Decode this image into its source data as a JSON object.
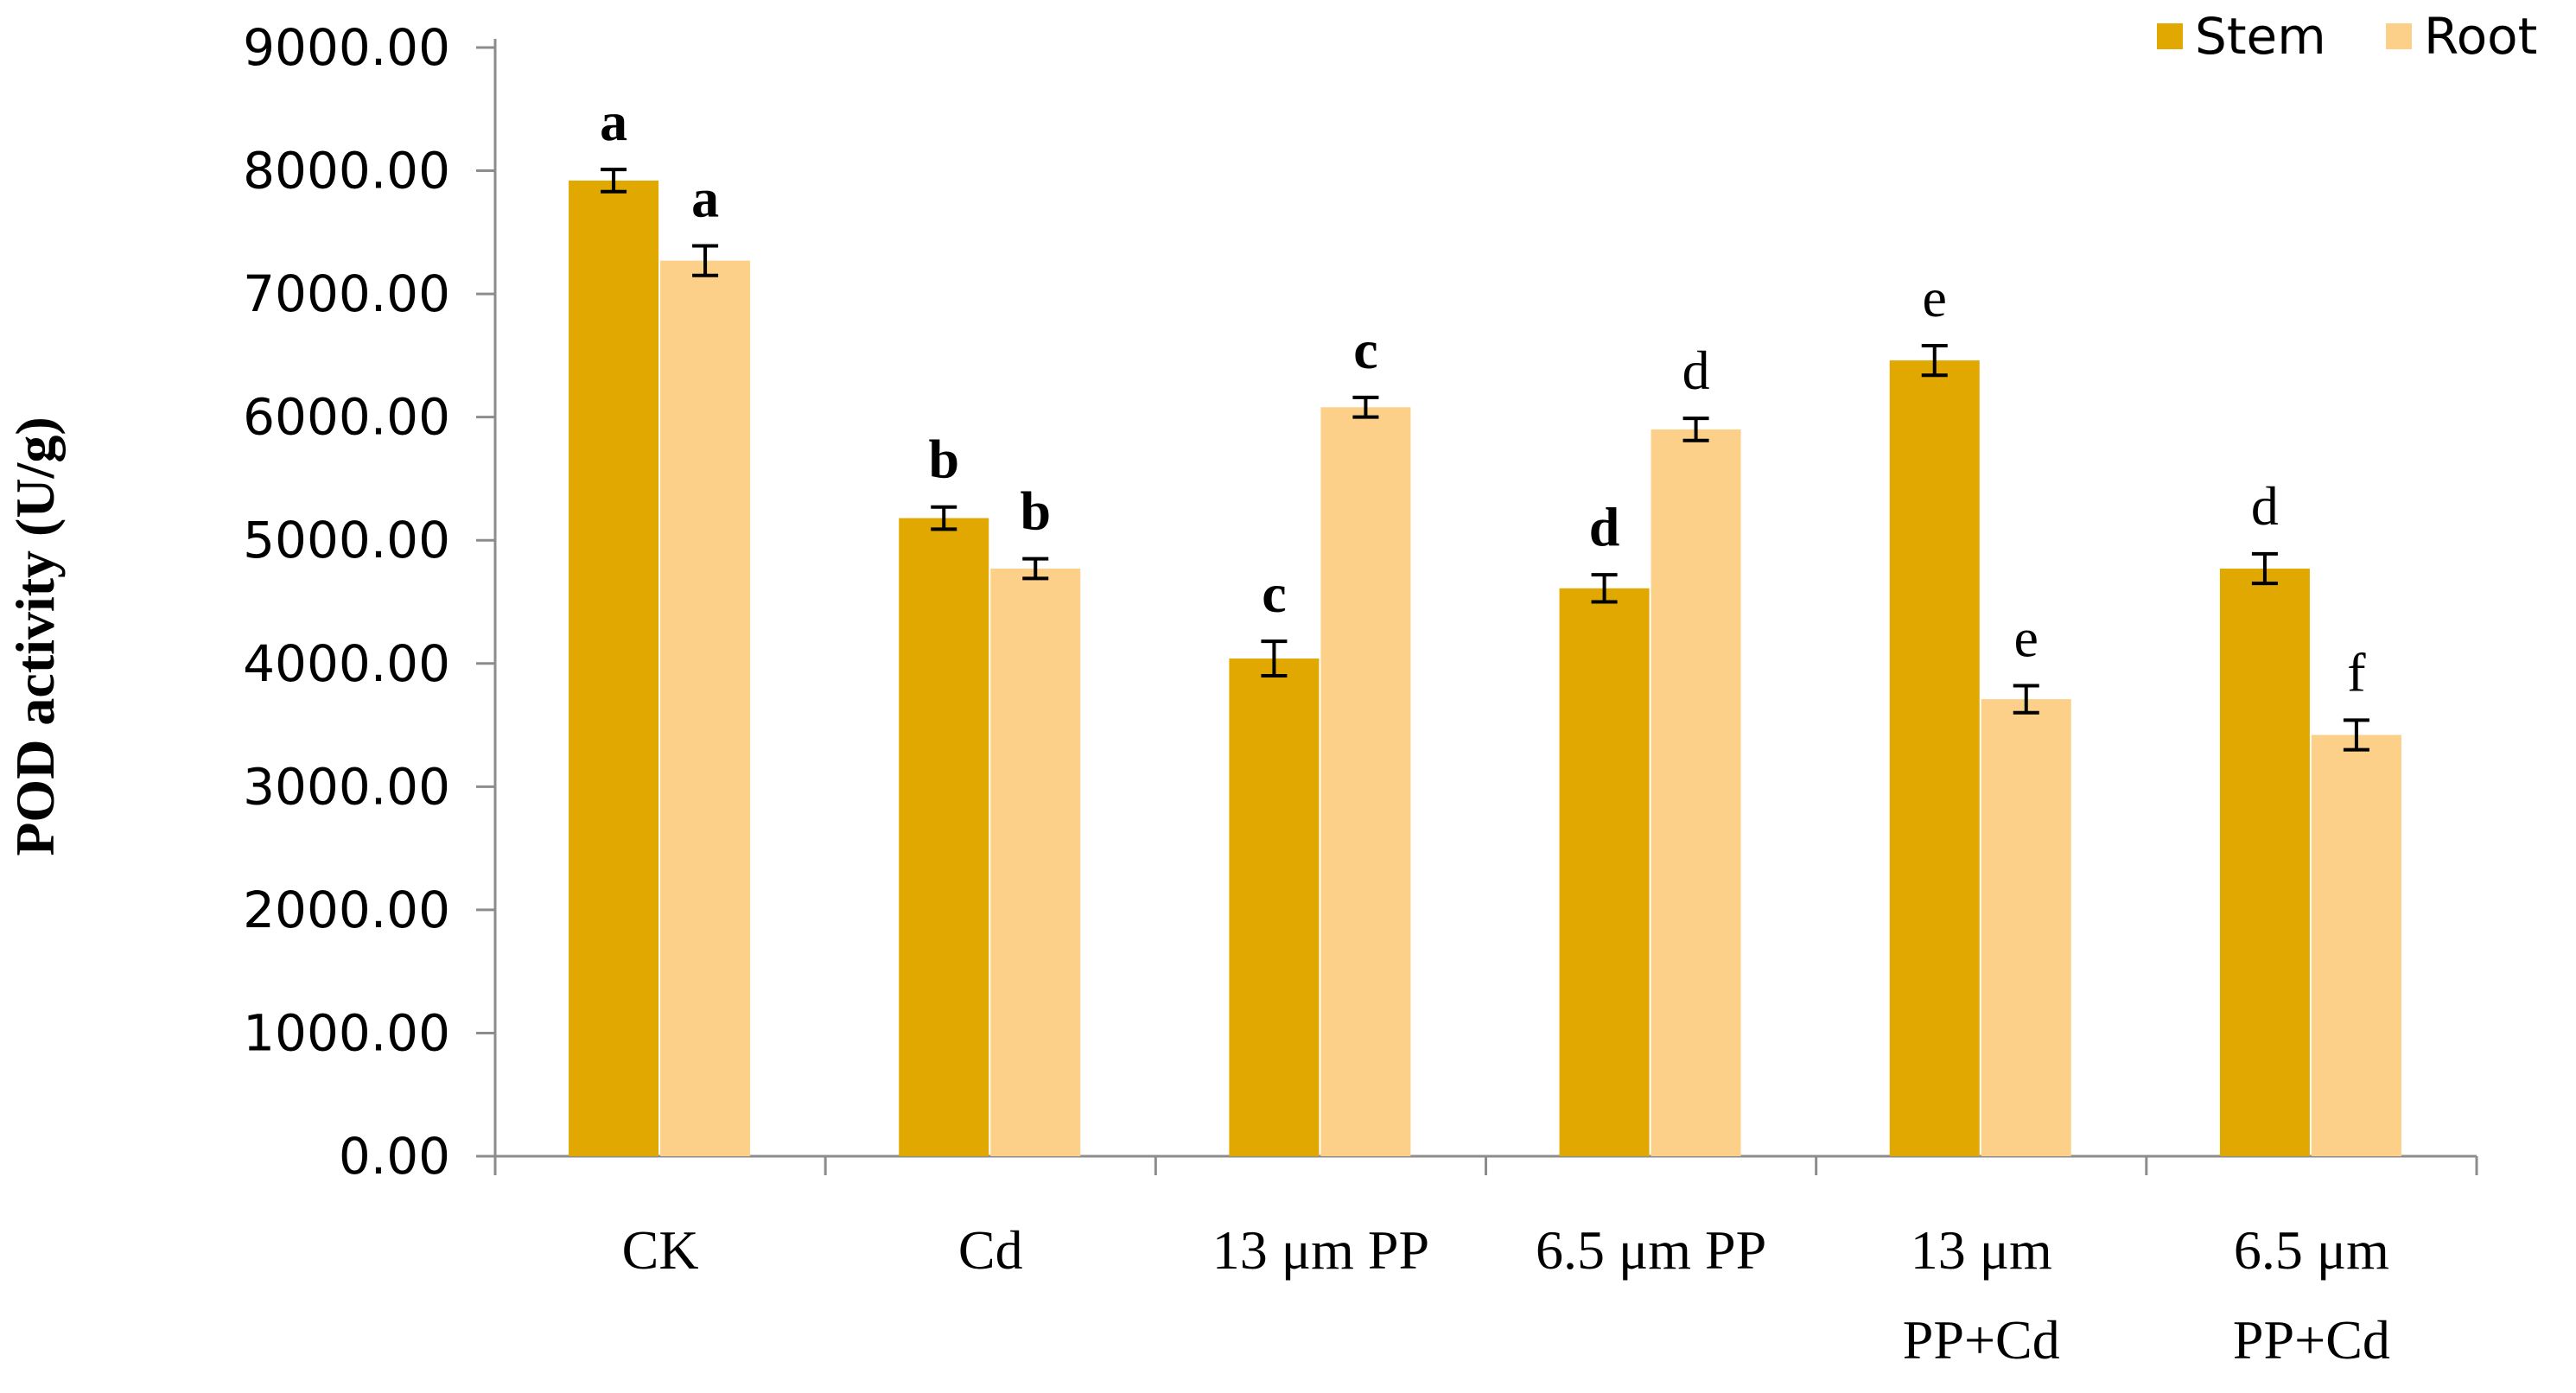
{
  "chart_data": {
    "type": "bar",
    "title": "",
    "xlabel": "",
    "ylabel": "POD activity (U/g)",
    "ylim": [
      0,
      9000
    ],
    "y_ticks": [
      0,
      1000,
      2000,
      3000,
      4000,
      5000,
      6000,
      7000,
      8000,
      9000
    ],
    "y_tick_labels": [
      "0.00",
      "1000.00",
      "2000.00",
      "3000.00",
      "4000.00",
      "5000.00",
      "6000.00",
      "7000.00",
      "8000.00",
      "9000.00"
    ],
    "grid": false,
    "legend_position": "top-right",
    "categories": [
      [
        "CK"
      ],
      [
        "Cd"
      ],
      [
        "13 μm PP"
      ],
      [
        "6.5 μm PP"
      ],
      [
        "13 μm",
        "PP+Cd"
      ],
      [
        "6.5 μm",
        "PP+Cd"
      ]
    ],
    "series": [
      {
        "name": "Stem",
        "color": "#e0a800",
        "values": [
          7920,
          5180,
          4040,
          4610,
          6460,
          4770
        ],
        "errors": [
          90,
          90,
          140,
          110,
          120,
          120
        ],
        "labels": [
          "a",
          "b",
          "c",
          "d",
          "e",
          "d"
        ],
        "label_bold": [
          true,
          true,
          true,
          true,
          false,
          false
        ]
      },
      {
        "name": "Root",
        "color": "#fdd089",
        "values": [
          7270,
          4770,
          6080,
          5900,
          3710,
          3420
        ],
        "errors": [
          120,
          80,
          80,
          90,
          110,
          120
        ],
        "labels": [
          "a",
          "b",
          "c",
          "d",
          "e",
          "f"
        ],
        "label_bold": [
          true,
          true,
          true,
          false,
          false,
          false
        ]
      }
    ]
  }
}
